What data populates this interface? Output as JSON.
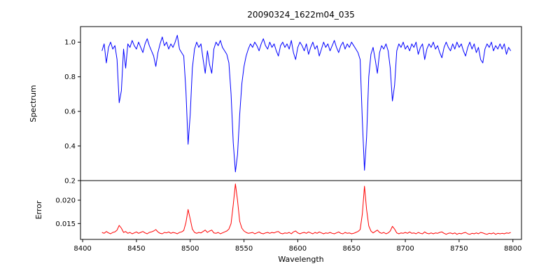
{
  "chart_data": {
    "type": "line",
    "title": "20090324_1622m04_035",
    "xlabel": "Wavelength",
    "background": "#ffffff",
    "axis_color": "#000000",
    "x_start": 8418,
    "x_step": 2,
    "xlim": [
      8398,
      8808
    ],
    "x_ticks": [
      8400,
      8450,
      8500,
      8550,
      8600,
      8650,
      8700,
      8750,
      8800
    ],
    "x_tick_labels": [
      "8400",
      "8450",
      "8500",
      "8550",
      "8600",
      "8650",
      "8700",
      "8750",
      "8800"
    ],
    "panels": [
      {
        "name": "spectrum",
        "ylabel": "Spectrum",
        "color": "#0000ff",
        "ylim": [
          0.2,
          1.09
        ],
        "y_ticks": [
          0.2,
          0.4,
          0.6,
          0.8,
          1.0
        ],
        "y_tick_labels": [
          "0.2",
          "0.4",
          "0.6",
          "0.8",
          "1.0"
        ],
        "values": [
          0.95,
          0.99,
          0.88,
          0.97,
          1.0,
          0.96,
          0.98,
          0.9,
          0.65,
          0.72,
          0.96,
          0.85,
          0.99,
          0.97,
          1.01,
          0.98,
          0.96,
          1.0,
          0.97,
          0.94,
          0.99,
          1.02,
          0.98,
          0.95,
          0.92,
          0.86,
          0.94,
          0.99,
          1.03,
          0.98,
          1.0,
          0.96,
          0.99,
          0.97,
          1.0,
          1.04,
          0.96,
          0.94,
          0.92,
          0.72,
          0.41,
          0.58,
          0.85,
          0.96,
          1.0,
          0.97,
          0.99,
          0.9,
          0.82,
          0.95,
          0.87,
          0.82,
          0.96,
          1.0,
          0.98,
          1.01,
          0.97,
          0.95,
          0.93,
          0.88,
          0.7,
          0.42,
          0.25,
          0.35,
          0.58,
          0.76,
          0.86,
          0.92,
          0.96,
          0.99,
          0.97,
          1.0,
          0.98,
          0.95,
          0.99,
          1.02,
          0.98,
          0.96,
          1.0,
          0.97,
          0.99,
          0.95,
          0.92,
          0.98,
          1.0,
          0.97,
          0.99,
          0.96,
          1.01,
          0.94,
          0.9,
          0.97,
          1.0,
          0.98,
          0.95,
          0.99,
          0.93,
          0.97,
          1.0,
          0.96,
          0.98,
          0.92,
          0.96,
          1.0,
          0.97,
          0.99,
          0.95,
          0.98,
          1.01,
          0.97,
          0.94,
          0.98,
          1.0,
          0.96,
          0.99,
          0.97,
          1.0,
          0.98,
          0.96,
          0.94,
          0.9,
          0.55,
          0.26,
          0.45,
          0.8,
          0.93,
          0.97,
          0.9,
          0.82,
          0.94,
          0.98,
          0.96,
          0.99,
          0.95,
          0.85,
          0.66,
          0.75,
          0.95,
          0.99,
          0.97,
          1.0,
          0.96,
          0.98,
          0.95,
          0.99,
          0.97,
          1.0,
          0.93,
          0.97,
          0.99,
          0.9,
          0.96,
          0.99,
          0.97,
          1.0,
          0.96,
          0.98,
          0.94,
          0.91,
          0.97,
          1.0,
          0.97,
          0.95,
          0.99,
          0.96,
          1.0,
          0.97,
          0.99,
          0.95,
          0.92,
          0.97,
          1.0,
          0.96,
          0.99,
          0.94,
          0.97,
          0.9,
          0.88,
          0.96,
          0.99,
          0.97,
          1.0,
          0.95,
          0.98,
          0.96,
          0.99,
          0.96,
          0.99,
          0.93,
          0.97,
          0.95
        ]
      },
      {
        "name": "error",
        "ylabel": "Error",
        "color": "#ff0000",
        "ylim": [
          0.0116,
          0.0242
        ],
        "y_ticks": [
          0.015,
          0.02
        ],
        "y_tick_labels": [
          "0.015",
          "0.020"
        ],
        "values": [
          0.0131,
          0.0129,
          0.0133,
          0.013,
          0.0128,
          0.0131,
          0.0132,
          0.0136,
          0.0146,
          0.014,
          0.0131,
          0.0133,
          0.0129,
          0.0131,
          0.0128,
          0.013,
          0.0132,
          0.0129,
          0.0131,
          0.0133,
          0.013,
          0.0128,
          0.0131,
          0.0132,
          0.0134,
          0.0137,
          0.0132,
          0.0129,
          0.0128,
          0.0131,
          0.013,
          0.0132,
          0.0129,
          0.0131,
          0.013,
          0.0128,
          0.0131,
          0.0132,
          0.0135,
          0.0152,
          0.018,
          0.016,
          0.0138,
          0.0131,
          0.0129,
          0.0131,
          0.013,
          0.0133,
          0.0136,
          0.0131,
          0.0134,
          0.0136,
          0.013,
          0.0129,
          0.0131,
          0.0128,
          0.013,
          0.0132,
          0.0134,
          0.0138,
          0.015,
          0.019,
          0.0235,
          0.02,
          0.0155,
          0.014,
          0.0134,
          0.0131,
          0.0129,
          0.013,
          0.0131,
          0.0128,
          0.013,
          0.0132,
          0.0129,
          0.0128,
          0.013,
          0.0131,
          0.0129,
          0.0131,
          0.013,
          0.0132,
          0.0133,
          0.0129,
          0.0128,
          0.013,
          0.0129,
          0.0131,
          0.0128,
          0.0132,
          0.0134,
          0.013,
          0.0128,
          0.013,
          0.0131,
          0.0129,
          0.0132,
          0.013,
          0.0128,
          0.0131,
          0.0129,
          0.0132,
          0.013,
          0.0128,
          0.013,
          0.0129,
          0.0131,
          0.0129,
          0.0128,
          0.013,
          0.0132,
          0.0129,
          0.0128,
          0.0131,
          0.0129,
          0.013,
          0.0128,
          0.0129,
          0.0131,
          0.0133,
          0.0137,
          0.017,
          0.023,
          0.018,
          0.0145,
          0.0134,
          0.013,
          0.0133,
          0.0136,
          0.0131,
          0.0129,
          0.0131,
          0.0128,
          0.013,
          0.0134,
          0.0144,
          0.0138,
          0.013,
          0.0128,
          0.013,
          0.0129,
          0.0131,
          0.0129,
          0.0132,
          0.0129,
          0.013,
          0.0128,
          0.0131,
          0.0129,
          0.0128,
          0.0132,
          0.0129,
          0.0128,
          0.013,
          0.0128,
          0.013,
          0.0129,
          0.0131,
          0.0132,
          0.0129,
          0.0127,
          0.0129,
          0.013,
          0.0128,
          0.013,
          0.0127,
          0.0129,
          0.0128,
          0.013,
          0.0131,
          0.0128,
          0.0127,
          0.0129,
          0.0128,
          0.013,
          0.0128,
          0.0131,
          0.013,
          0.0128,
          0.0127,
          0.0129,
          0.0128,
          0.013,
          0.0127,
          0.0129,
          0.0128,
          0.0129,
          0.0128,
          0.013,
          0.0129,
          0.0131
        ]
      }
    ]
  }
}
